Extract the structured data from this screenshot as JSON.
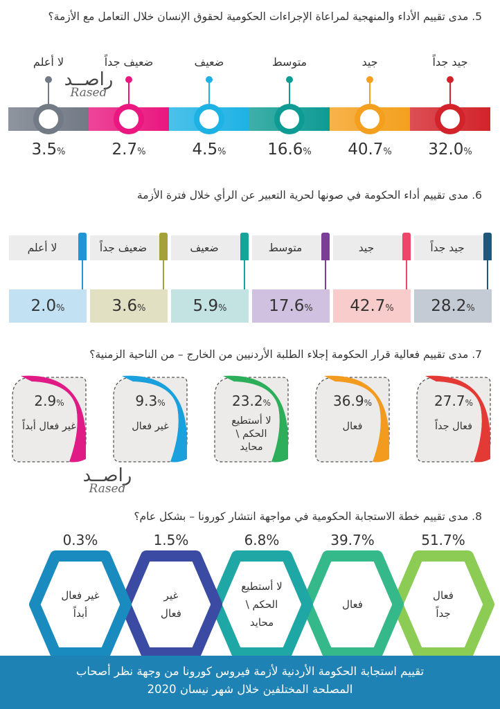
{
  "colors": {
    "c1": "#d2232a",
    "c2": "#f4a01e",
    "c3": "#0e9b93",
    "c4": "#1eb2e4",
    "c5": "#e9177f",
    "c6": "#727a86",
    "q6_1": "#20587c",
    "q6_2": "#ee4668",
    "q6_3": "#7b3e95",
    "q6_4": "#16a49a",
    "q6_5": "#a4a13a",
    "q6_6": "#2495d4",
    "q6_bg1": "#c5cbd5",
    "q6_bg2": "#f8cccb",
    "q6_bg3": "#cfc1df",
    "q6_bg4": "#c2e3e1",
    "q6_bg5": "#e2e0c3",
    "q6_bg6": "#c2e2f4",
    "q7_1": "#e43a36",
    "q7_2": "#f29b1f",
    "q7_3": "#2dae5b",
    "q7_4": "#1aa0dc",
    "q7_5": "#e01b85",
    "footer": "#1f82b4"
  },
  "watermark": {
    "arabic": "راصــد",
    "english": "Rased"
  },
  "chart_data": [
    {
      "type": "bar",
      "title": "5. مدى تقييم الأداء والمنهجية لمراعاة الإجراءات الحكومية لحقوق الإنسان خلال التعامل مع الأزمة؟",
      "categories": [
        "جيد جداً",
        "جيد",
        "متوسط",
        "ضعيف",
        "ضعيف جداً",
        "لا أعلم"
      ],
      "values": [
        32.0,
        40.7,
        16.6,
        4.5,
        2.7,
        3.5
      ],
      "display_values": [
        "32.0",
        "40.7",
        "16.6",
        "4.5",
        "2.7",
        "3.5"
      ],
      "unit": "%"
    },
    {
      "type": "bar",
      "title": "6. مدى تقييم أداء الحكومة في صونها لحرية التعبير عن الرأي خلال فترة الأزمة",
      "categories": [
        "جيد جداً",
        "جيد",
        "متوسط",
        "ضعيف",
        "ضعيف جداً",
        "لا أعلم"
      ],
      "values": [
        28.2,
        42.7,
        17.6,
        5.9,
        3.6,
        2.0
      ],
      "display_values": [
        "28.2",
        "42.7",
        "17.6",
        "5.9",
        "3.6",
        "2.0"
      ],
      "unit": "%"
    },
    {
      "type": "bar",
      "title": "7. مدى تقييم فعالية قرار الحكومة إجلاء الطلبة الأردنيين من الخارج – من الناحية الزمنية؟",
      "categories": [
        "فعال جداً",
        "فعال",
        "لا أستطيع الحكم \\ محايد",
        "غير فعال",
        "غير فعال أبداً"
      ],
      "values": [
        27.7,
        36.9,
        23.2,
        9.3,
        2.9
      ],
      "display_values": [
        "27.7",
        "36.9",
        "23.2",
        "9.3",
        "2.9"
      ],
      "unit": "%"
    },
    {
      "type": "bar",
      "title": "8. مدى تقييم خطة الاستجابة الحكومية في مواجهة انتشار كورونا – بشكل عام؟",
      "categories": [
        "فعال جداً",
        "فعال",
        "لا أستطيع الحكم \\ محايد",
        "غير فعال",
        "غير فعال أبداً"
      ],
      "values": [
        51.7,
        39.7,
        6.8,
        1.5,
        0.3
      ],
      "display_values": [
        "51.7",
        "39.7",
        "6.8",
        "1.5",
        "0.3"
      ],
      "unit": "%"
    }
  ],
  "q7_labels": [
    [
      "فعال جداً"
    ],
    [
      "فعال"
    ],
    [
      "لا أستطيع",
      "الحكم \\",
      "محايد"
    ],
    [
      "غير فعال"
    ],
    [
      "غير فعال أبداً"
    ]
  ],
  "q8_labels": [
    [
      "فعال",
      "جداً"
    ],
    [
      "فعال"
    ],
    [
      "لا أستطيع",
      "الحكم \\",
      "محايد"
    ],
    [
      "غير",
      "فعال"
    ],
    [
      "غير فعال",
      "أبداً"
    ]
  ],
  "footer": {
    "line1": "تقييم استجابة الحكومة الأردنية لأزمة فيروس كورونا من وجهة نظر أصحاب",
    "line2": "المصلحة المختلفين خلال شهر نيسان 2020"
  }
}
